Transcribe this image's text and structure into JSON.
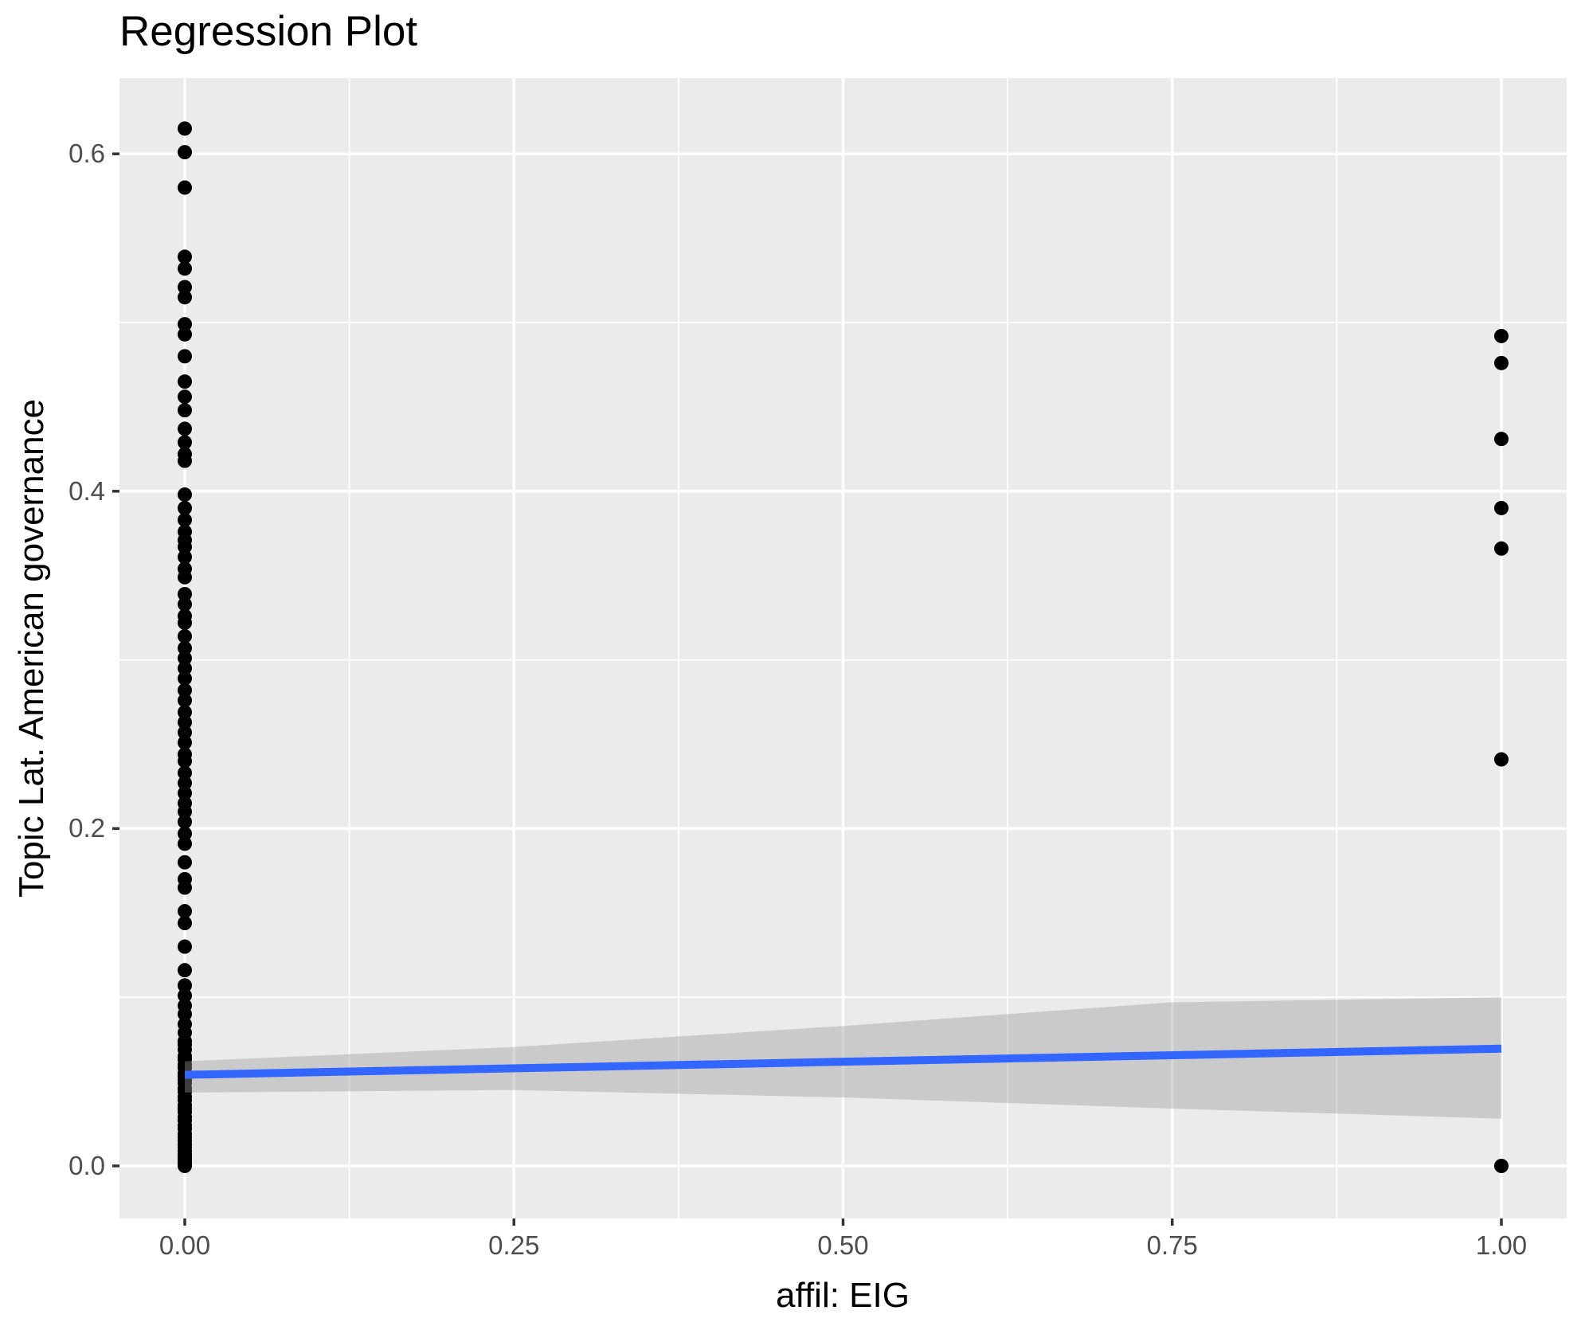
{
  "chart": {
    "title": "Regression Plot",
    "x_axis": {
      "title": "affil: EIG",
      "tick_labels": [
        "0.00",
        "0.25",
        "0.50",
        "0.75",
        "1.00"
      ],
      "tick_values": [
        0,
        0.25,
        0.5,
        0.75,
        1.0
      ],
      "minor_tick_values": [
        0.125,
        0.375,
        0.625,
        0.875
      ]
    },
    "y_axis": {
      "title": "Topic Lat. American governance",
      "tick_labels": [
        "0.0",
        "0.2",
        "0.4",
        "0.6"
      ],
      "tick_values": [
        0,
        0.2,
        0.4,
        0.6
      ],
      "minor_tick_values": [
        0.1,
        0.3,
        0.5
      ]
    },
    "colors": {
      "point": "#000000",
      "regression_line": "#3366FF",
      "ci_band": "rgba(153,153,153,0.4)",
      "panel_background": "#EBEBEB",
      "grid_major": "#FFFFFF",
      "grid_minor": "#FFFFFF",
      "tick_text": "#4D4D4D",
      "axis_title_text": "#000000",
      "tick_mark": "#333333"
    }
  },
  "chart_data": {
    "type": "scatter",
    "title": "Regression Plot",
    "xlabel": "affil: EIG",
    "ylabel": "Topic Lat. American governance",
    "xlim": [
      -0.0496,
      1.0496
    ],
    "ylim": [
      -0.0312,
      0.645
    ],
    "grid": true,
    "legend": false,
    "series": [
      {
        "name": "affil = 0",
        "x_value": 0,
        "y": [
          0.615,
          0.601,
          0.58,
          0.539,
          0.532,
          0.521,
          0.515,
          0.499,
          0.493,
          0.48,
          0.465,
          0.456,
          0.448,
          0.437,
          0.429,
          0.422,
          0.418,
          0.398,
          0.39,
          0.383,
          0.376,
          0.371,
          0.367,
          0.361,
          0.354,
          0.349,
          0.339,
          0.333,
          0.326,
          0.322,
          0.314,
          0.307,
          0.301,
          0.295,
          0.289,
          0.282,
          0.276,
          0.269,
          0.263,
          0.257,
          0.251,
          0.244,
          0.24,
          0.233,
          0.227,
          0.221,
          0.215,
          0.21,
          0.204,
          0.197,
          0.191,
          0.18,
          0.17,
          0.165,
          0.151,
          0.144,
          0.13,
          0.116,
          0.107,
          0.101,
          0.095,
          0.09,
          0.084,
          0.079,
          0.074,
          0.072,
          0.069,
          0.065,
          0.063,
          0.06,
          0.058,
          0.055,
          0.053,
          0.051,
          0.049,
          0.046,
          0.044,
          0.041,
          0.039,
          0.036,
          0.034,
          0.032,
          0.029,
          0.027,
          0.024,
          0.022,
          0.019,
          0.017,
          0.015,
          0.013,
          0.011,
          0.009,
          0.007,
          0.006,
          0.005,
          0.004,
          0.003,
          0.002,
          0.001,
          0.0
        ]
      },
      {
        "name": "affil = 1",
        "x_value": 1,
        "y": [
          0.492,
          0.476,
          0.431,
          0.39,
          0.366,
          0.241,
          0.0
        ]
      }
    ],
    "regression_line": {
      "x": [
        0,
        1
      ],
      "y": [
        0.054,
        0.0695
      ]
    },
    "ci_band": {
      "x": [
        0.0,
        0.25,
        0.5,
        0.75,
        1.0
      ],
      "lower": [
        0.0435,
        0.045,
        0.0406,
        0.034,
        0.028
      ],
      "upper": [
        0.062,
        0.0705,
        0.083,
        0.097,
        0.1
      ]
    }
  }
}
